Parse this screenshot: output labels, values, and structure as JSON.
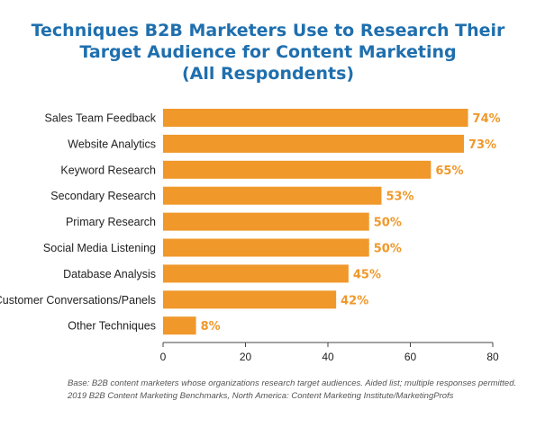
{
  "chart_data": {
    "type": "bar",
    "orientation": "horizontal",
    "title_lines": [
      "Techniques B2B Marketers Use to Research Their",
      "Target Audience for Content Marketing",
      "(All Respondents)"
    ],
    "categories": [
      "Sales Team Feedback",
      "Website Analytics",
      "Keyword Research",
      "Secondary Research",
      "Primary Research",
      "Social Media Listening",
      "Database Analysis",
      "Customer Conversations/Panels",
      "Other Techniques"
    ],
    "values": [
      74,
      73,
      65,
      53,
      50,
      50,
      45,
      42,
      8
    ],
    "value_labels": [
      "74%",
      "73%",
      "65%",
      "53%",
      "50%",
      "50%",
      "45%",
      "42%",
      "8%"
    ],
    "xlim": [
      0,
      80
    ],
    "xticks": [
      0,
      20,
      40,
      60,
      80
    ],
    "xtick_labels": [
      "0",
      "20",
      "40",
      "60",
      "80"
    ],
    "grid": false,
    "legend": "none",
    "bar_color": "#f0982a",
    "value_label_color": "#f0982a",
    "title_color": "#1f6fae"
  },
  "footnote": {
    "line1": "Base: B2B content marketers whose organizations research target audiences. Aided list; multiple responses permitted.",
    "line2": "2019 B2B Content Marketing Benchmarks, North America: Content Marketing Institute/MarketingProfs"
  }
}
